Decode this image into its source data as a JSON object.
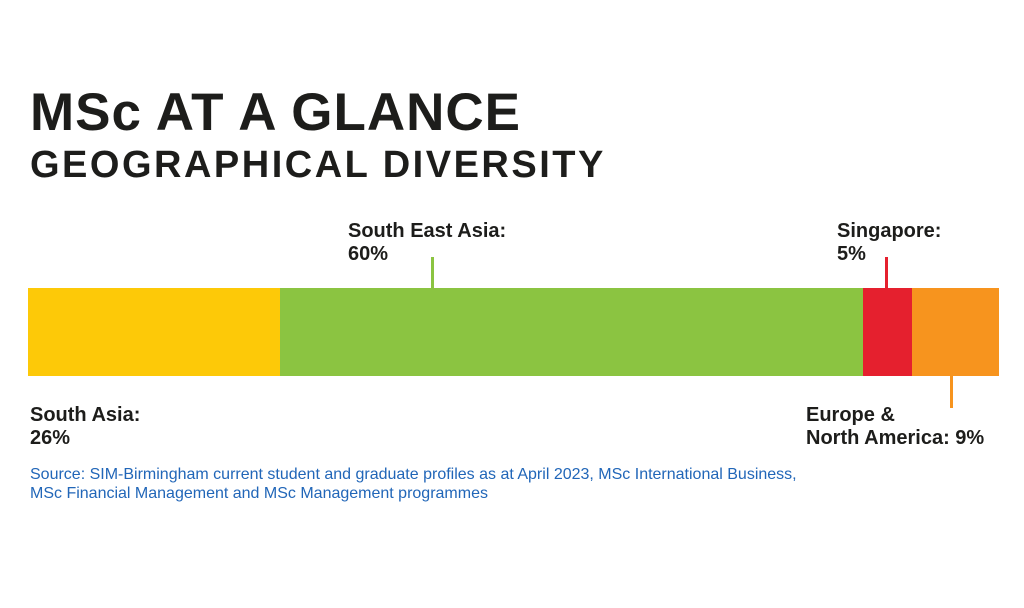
{
  "header": {
    "title": "MSc AT A GLANCE",
    "subtitle": "GEOGRAPHICAL DIVERSITY"
  },
  "chart_data": {
    "type": "bar",
    "orientation": "horizontal",
    "stacked": true,
    "title": "MSc AT A GLANCE",
    "subtitle": "GEOGRAPHICAL DIVERSITY",
    "unit": "%",
    "categories": [
      "South Asia",
      "South East Asia",
      "Singapore",
      "Europe & North America"
    ],
    "values": [
      26,
      60,
      5,
      9
    ],
    "segments": [
      {
        "label": "South Asia",
        "value": 26,
        "color": "#FDC908"
      },
      {
        "label": "South East Asia",
        "value": 60,
        "color": "#8BC441"
      },
      {
        "label": "Singapore",
        "value": 5,
        "color": "#E5202E"
      },
      {
        "label": "Europe & North America",
        "value": 9,
        "color": "#F7941E"
      }
    ],
    "legend": "none",
    "axes": "none",
    "grid": false
  },
  "annotations": {
    "south_east_asia": {
      "line1": "South East Asia:",
      "line2": "60%",
      "connector_color": "#8BC441"
    },
    "singapore": {
      "line1": "Singapore:",
      "line2": "5%",
      "connector_color": "#E5202E"
    },
    "south_asia": {
      "line1": "South Asia:",
      "line2": "26%"
    },
    "europe_north_america": {
      "line1": "Europe &",
      "line2": "North America: 9%",
      "connector_color": "#F7941E"
    }
  },
  "source": {
    "line1": "Source: SIM-Birmingham current student and graduate profiles as at April 2023, MSc International Business,",
    "line2": "MSc Financial Management and MSc Management programmes",
    "color": "#2166B8"
  },
  "colors": {
    "background": "#FFFFFF",
    "text": "#1D1D1B"
  }
}
